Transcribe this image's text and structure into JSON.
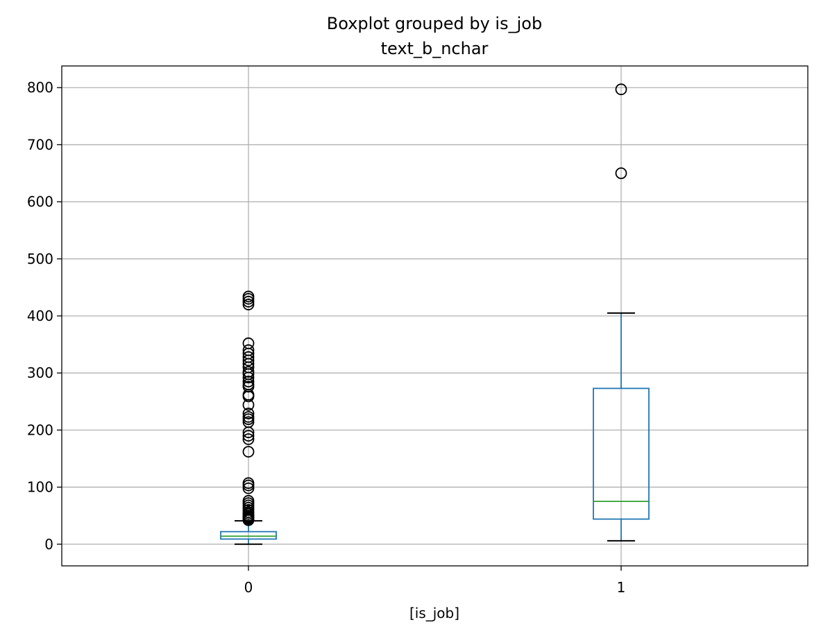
{
  "chart_data": {
    "type": "box",
    "title": "Boxplot grouped by is_job",
    "subtitle": "text_b_nchar",
    "xlabel": "[is_job]",
    "ylabel": "",
    "categories": [
      "0",
      "1"
    ],
    "ylim": [
      -38,
      838
    ],
    "yticks": [
      0,
      100,
      200,
      300,
      400,
      500,
      600,
      700,
      800
    ],
    "grid": true,
    "colors": {
      "box": "#1f77b4",
      "median": "#2ca02c",
      "whisker": "#1f77b4",
      "cap": "#000000",
      "flier": "#000000",
      "grid": "#b0b0b0"
    },
    "boxes": [
      {
        "category": "0",
        "whisker_low": 0,
        "q1": 9,
        "median": 14,
        "q3": 22,
        "whisker_high": 41,
        "fliers": [
          42,
          44,
          46,
          48,
          50,
          53,
          56,
          60,
          64,
          68,
          72,
          76,
          98,
          103,
          107,
          162,
          184,
          190,
          196,
          214,
          219,
          223,
          229,
          244,
          259,
          262,
          276,
          280,
          285,
          292,
          298,
          302,
          310,
          316,
          322,
          328,
          334,
          340,
          352,
          420,
          425,
          430,
          434
        ]
      },
      {
        "category": "1",
        "whisker_low": 6,
        "q1": 44,
        "median": 75,
        "q3": 273,
        "whisker_high": 405,
        "fliers": [
          650,
          797
        ]
      }
    ]
  }
}
